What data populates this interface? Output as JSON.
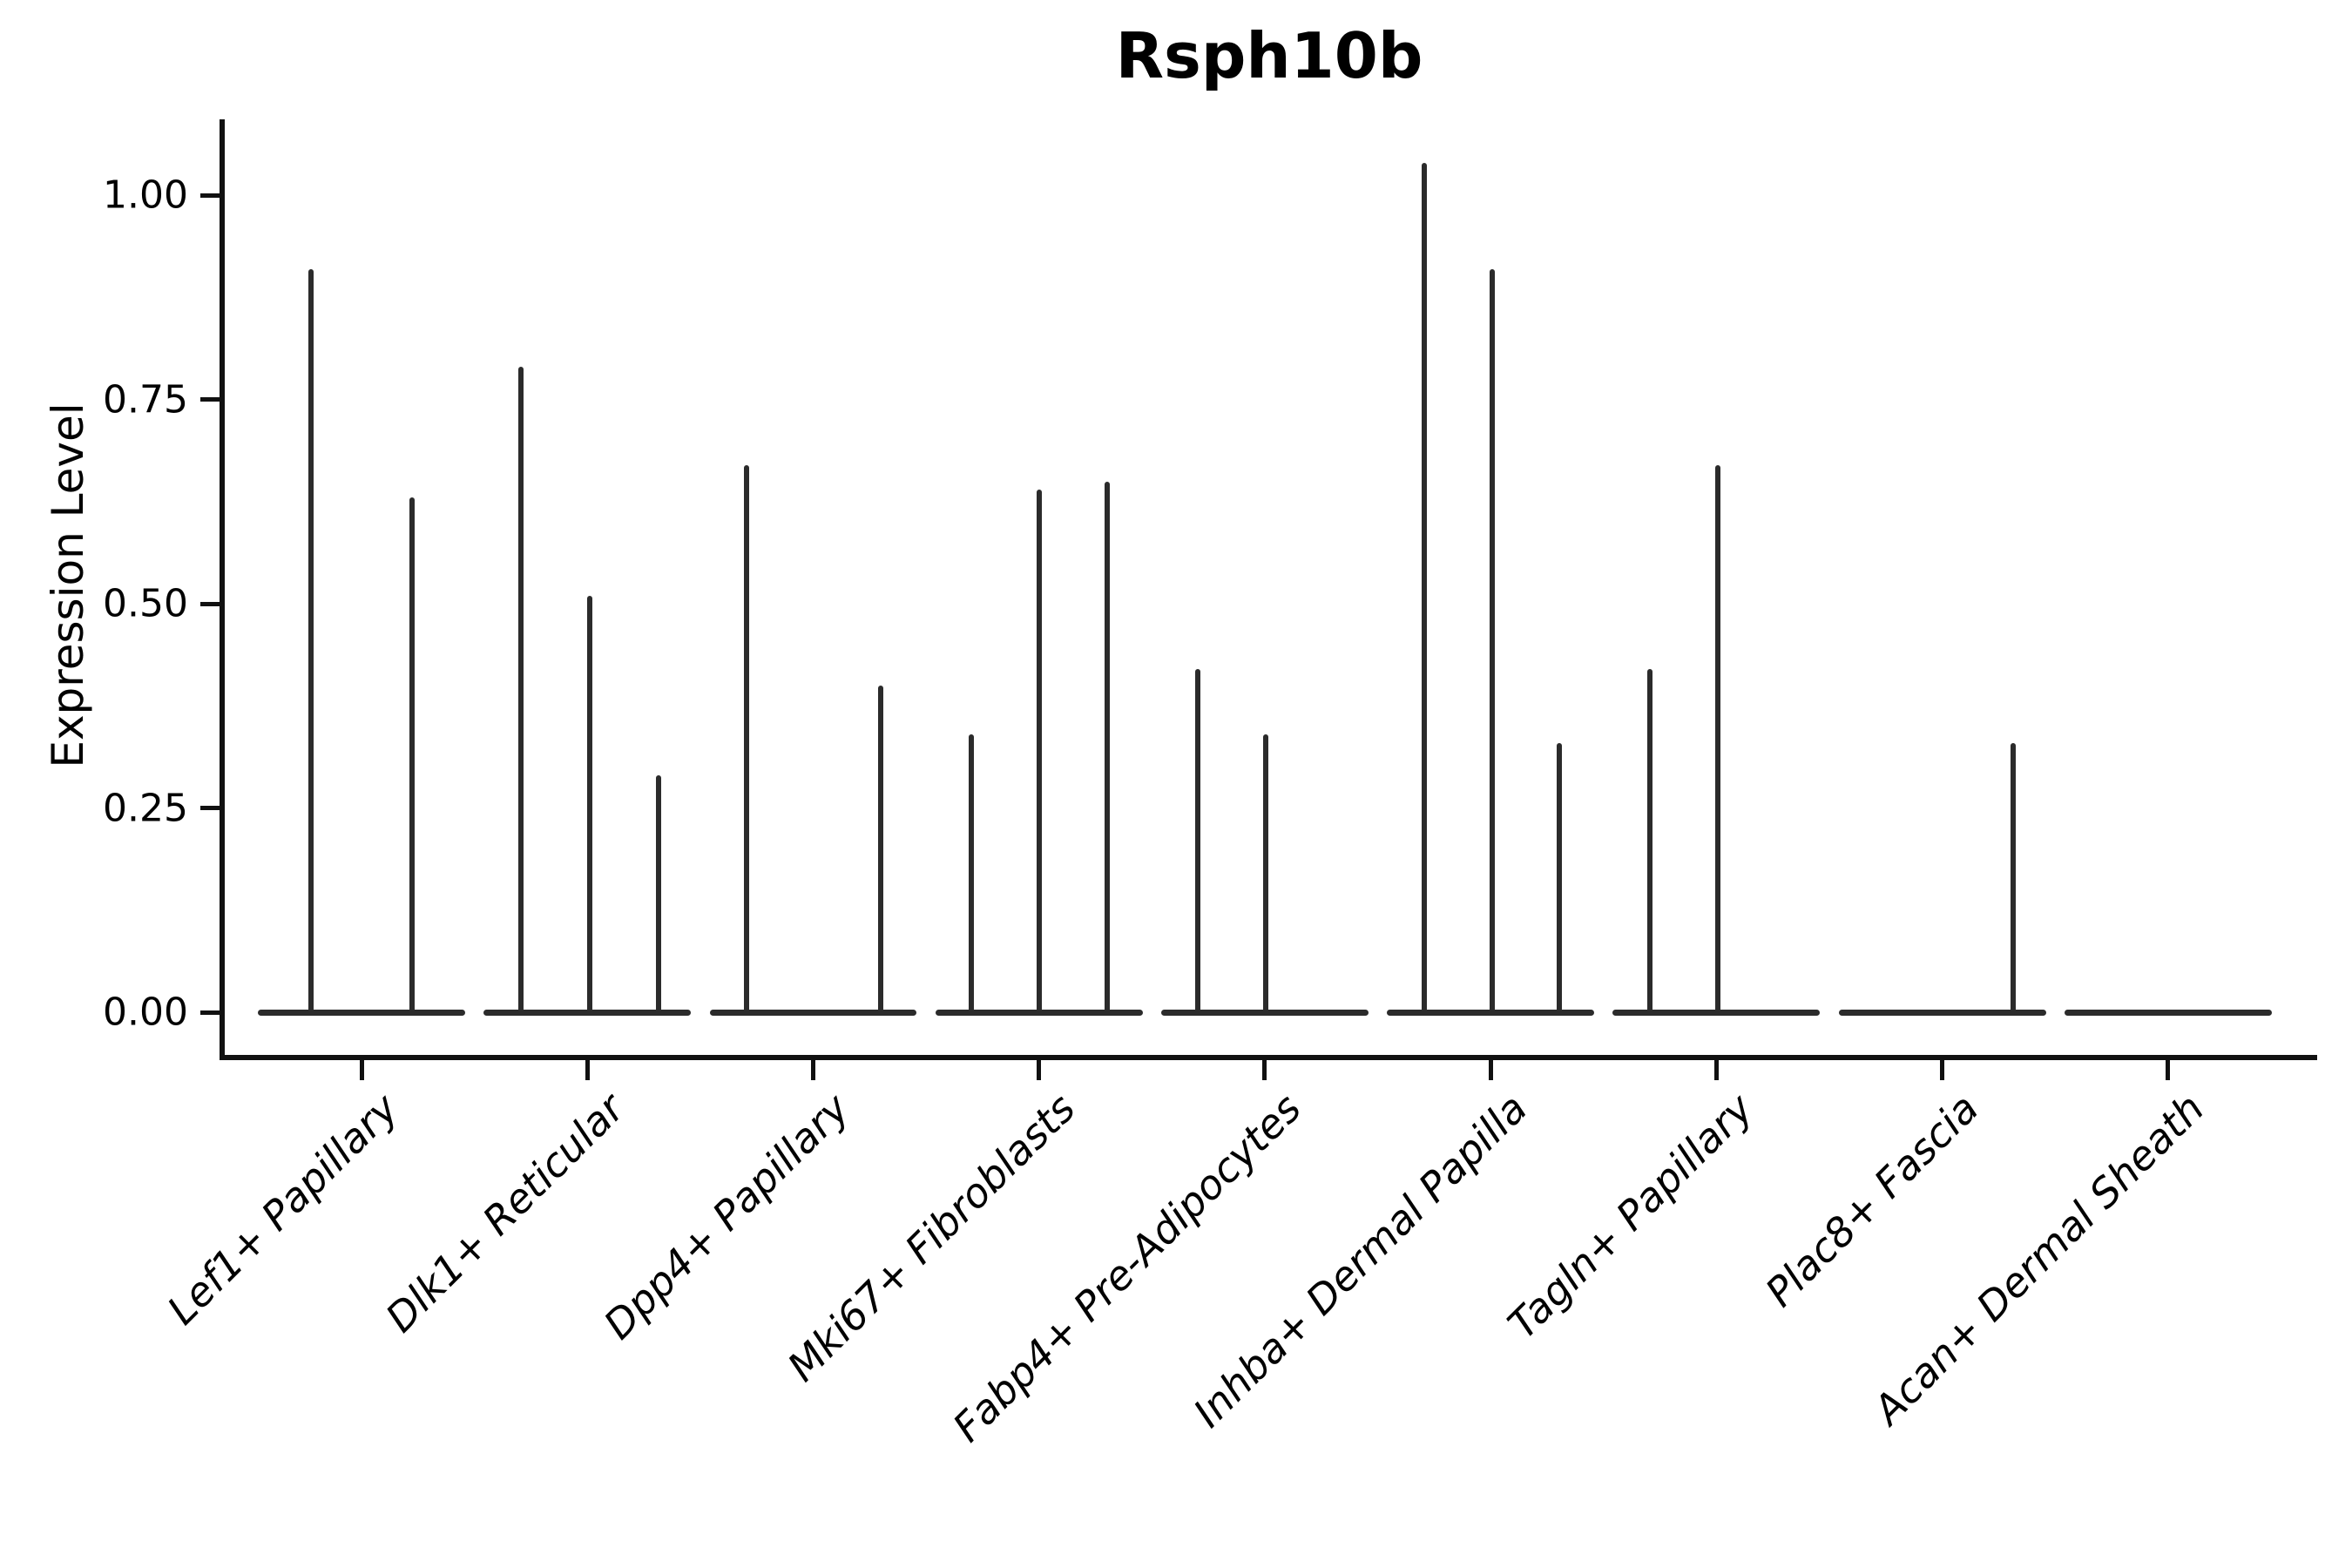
{
  "chart_data": {
    "type": "violin",
    "title": "Rsph10b",
    "ylabel": "Expression Level",
    "xlabel": "",
    "grid": false,
    "legend": null,
    "background_color": "#ffffff",
    "violin_color": "#2b2b2b",
    "axis_color": "#111111",
    "text_color": "#000000",
    "ylim": [
      -0.052,
      1.093
    ],
    "xlim": [
      0.394,
      9.645
    ],
    "ytick_values": [
      0.0,
      0.25,
      0.5,
      0.75,
      1.0
    ],
    "ytick_labels": [
      "0.00",
      "0.25",
      "0.50",
      "0.75",
      "1.00"
    ],
    "categories": [
      "Lef1+ Papillary",
      "Dlk1+ Reticular",
      "Dpp4+ Papillary",
      "Mki67+ Fibroblasts",
      "Fabp4+ Pre-Adipocytes",
      "Inhba+ Dermal Papilla",
      "Tagln+ Papillary",
      "Plac8+ Fascia",
      "Acan+ Dermal Sheath"
    ],
    "baseline_halfwidth": 0.459,
    "violins": [
      {
        "category": "Lef1+ Papillary",
        "position": 1,
        "spikes": [
          {
            "pos": 0.776,
            "max": 0.91
          },
          {
            "pos": 1.224,
            "max": 0.63
          }
        ]
      },
      {
        "category": "Dlk1+ Reticular",
        "position": 2,
        "spikes": [
          {
            "pos": 1.706,
            "max": 0.79
          },
          {
            "pos": 2.011,
            "max": 0.51
          },
          {
            "pos": 2.316,
            "max": 0.29
          }
        ]
      },
      {
        "category": "Dpp4+ Papillary",
        "position": 3,
        "spikes": [
          {
            "pos": 2.705,
            "max": 0.67
          },
          {
            "pos": 3.299,
            "max": 0.4
          }
        ]
      },
      {
        "category": "Mki67+ Fibroblasts",
        "position": 4,
        "spikes": [
          {
            "pos": 3.7,
            "max": 0.34
          },
          {
            "pos": 4.001,
            "max": 0.64
          },
          {
            "pos": 4.302,
            "max": 0.65
          }
        ]
      },
      {
        "category": "Fabp4+ Pre-Adipocytes",
        "position": 5,
        "spikes": [
          {
            "pos": 4.703,
            "max": 0.42
          },
          {
            "pos": 5.004,
            "max": 0.34
          }
        ]
      },
      {
        "category": "Inhba+ Dermal Papilla",
        "position": 6,
        "spikes": [
          {
            "pos": 5.706,
            "max": 1.04
          },
          {
            "pos": 6.007,
            "max": 0.91
          },
          {
            "pos": 6.304,
            "max": 0.33
          }
        ]
      },
      {
        "category": "Tagln+ Papillary",
        "position": 7,
        "spikes": [
          {
            "pos": 6.705,
            "max": 0.42
          },
          {
            "pos": 7.006,
            "max": 0.67
          }
        ]
      },
      {
        "category": "Plac8+ Fascia",
        "position": 8,
        "spikes": [
          {
            "pos": 8.314,
            "max": 0.33
          }
        ]
      },
      {
        "category": "Acan+ Dermal Sheath",
        "position": 9,
        "spikes": []
      }
    ]
  }
}
